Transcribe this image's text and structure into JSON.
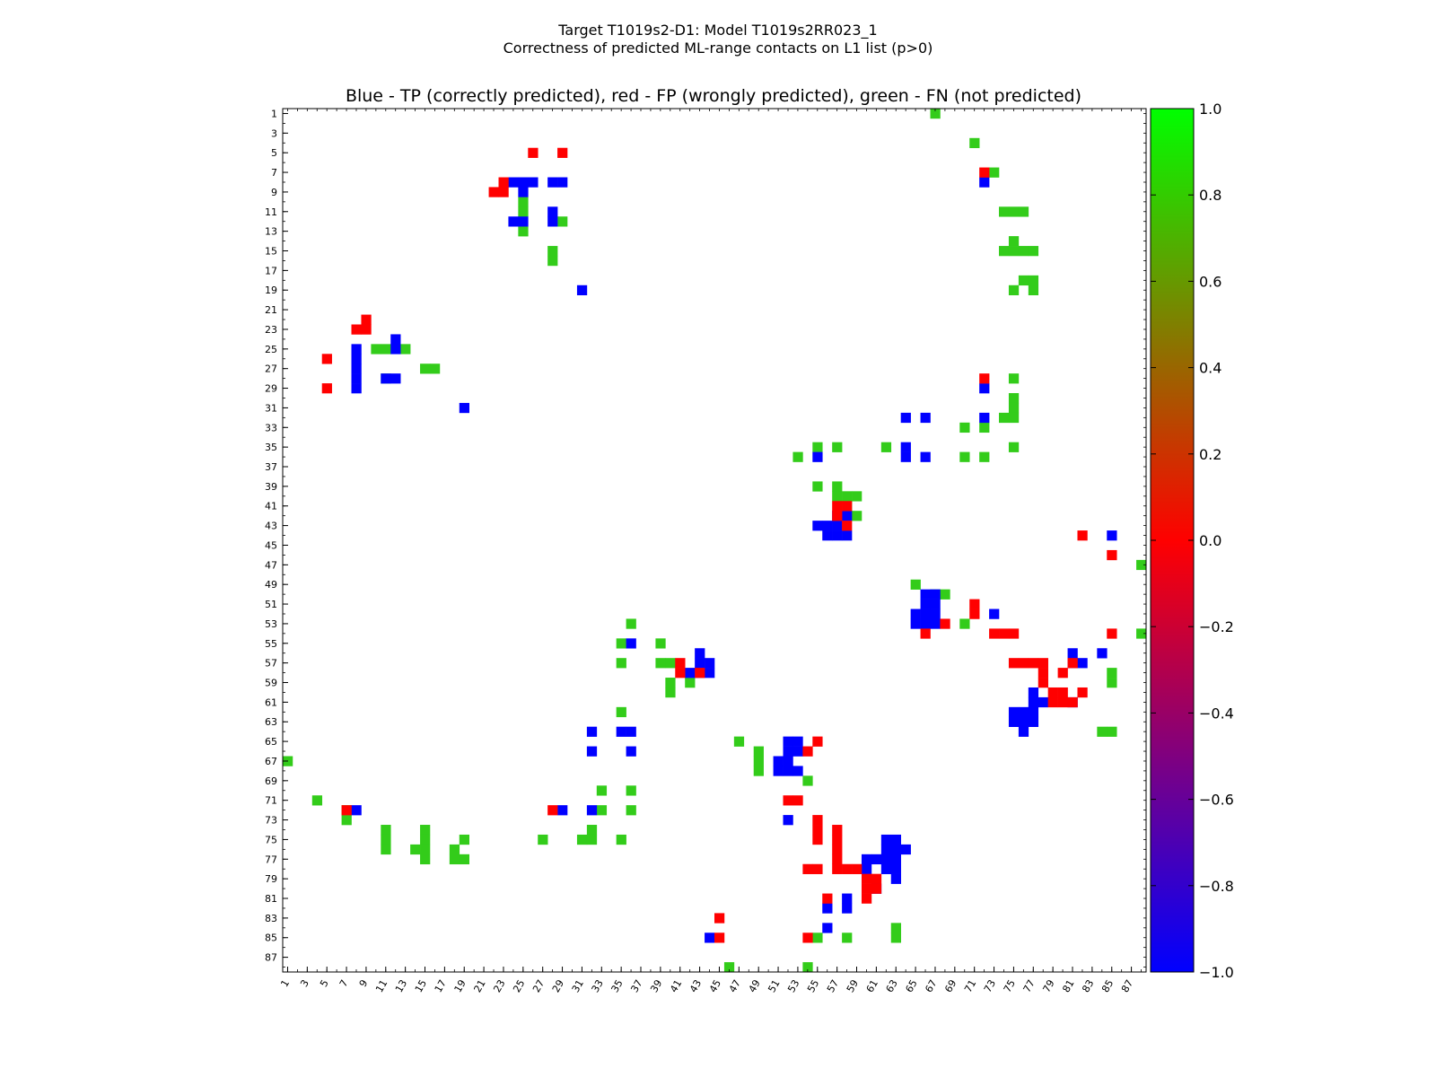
{
  "figure": {
    "suptitle_line1": "Target T1019s2-D1: Model T1019s2RR023_1",
    "suptitle_line2": "Correctness of predicted ML-range contacts on L1 list (p>0)",
    "axes_title": "Blue - TP (correctly predicted), red - FP (wrongly predicted), green - FN (not predicted)"
  },
  "chart_data": {
    "type": "heatmap",
    "n_residues": 88,
    "xlim": [
      1,
      88
    ],
    "ylim": [
      1,
      88
    ],
    "y_inverted": true,
    "x_ticks": [
      1,
      3,
      5,
      7,
      9,
      11,
      13,
      15,
      17,
      19,
      21,
      23,
      25,
      27,
      29,
      31,
      33,
      35,
      37,
      39,
      41,
      43,
      45,
      47,
      49,
      51,
      53,
      55,
      57,
      59,
      61,
      63,
      65,
      67,
      69,
      71,
      73,
      75,
      77,
      79,
      81,
      83,
      85,
      87
    ],
    "y_ticks": [
      1,
      3,
      5,
      7,
      9,
      11,
      13,
      15,
      17,
      19,
      21,
      23,
      25,
      27,
      29,
      31,
      33,
      35,
      37,
      39,
      41,
      43,
      45,
      47,
      49,
      51,
      53,
      55,
      57,
      59,
      61,
      63,
      65,
      67,
      69,
      71,
      73,
      75,
      77,
      79,
      81,
      83,
      85,
      87
    ],
    "colorbar": {
      "min": -1.0,
      "max": 1.0,
      "ticks": [
        "1.0",
        "0.8",
        "0.6",
        "0.4",
        "0.2",
        "0.0",
        "−0.2",
        "−0.4",
        "−0.6",
        "−0.8",
        "−1.0"
      ],
      "stops": [
        {
          "value": -1.0,
          "color": "#0000ff"
        },
        {
          "value": 0.0,
          "color": "#ff0000"
        },
        {
          "value": 1.0,
          "color": "#00ff00"
        }
      ]
    },
    "colors": {
      "TP": "#0000ff",
      "FP": "#ff0000",
      "FN": "#33cc1a"
    },
    "TP": [
      [
        25,
        8
      ],
      [
        26,
        8
      ],
      [
        27,
        8
      ],
      [
        8,
        24
      ],
      [
        8,
        25
      ],
      [
        8,
        26
      ],
      [
        8,
        28
      ],
      [
        8,
        29
      ],
      [
        9,
        25
      ],
      [
        25,
        12
      ],
      [
        24,
        12
      ],
      [
        28,
        8
      ],
      [
        29,
        8
      ],
      [
        28,
        11
      ],
      [
        28,
        12
      ],
      [
        12,
        24
      ],
      [
        12,
        25
      ],
      [
        11,
        28
      ],
      [
        12,
        28
      ],
      [
        19,
        31
      ],
      [
        31,
        19
      ],
      [
        8,
        72
      ],
      [
        29,
        72
      ],
      [
        32,
        72
      ],
      [
        32,
        64
      ],
      [
        32,
        66
      ],
      [
        35,
        64
      ],
      [
        36,
        64
      ],
      [
        36,
        55
      ],
      [
        36,
        66
      ],
      [
        42,
        57
      ],
      [
        42,
        58
      ],
      [
        43,
        55
      ],
      [
        43,
        56
      ],
      [
        43,
        57
      ],
      [
        44,
        56
      ],
      [
        44,
        57
      ],
      [
        44,
        58
      ],
      [
        44,
        85
      ],
      [
        50,
        66
      ],
      [
        50,
        67
      ],
      [
        51,
        66
      ],
      [
        51,
        67
      ],
      [
        52,
        65
      ],
      [
        52,
        66
      ],
      [
        52,
        67
      ],
      [
        53,
        65
      ],
      [
        53,
        66
      ],
      [
        53,
        67
      ],
      [
        52,
        73
      ],
      [
        56,
        43
      ],
      [
        57,
        43
      ],
      [
        57,
        44
      ],
      [
        58,
        42
      ],
      [
        58,
        43
      ],
      [
        58,
        44
      ],
      [
        55,
        36
      ],
      [
        56,
        81
      ],
      [
        57,
        81
      ],
      [
        57,
        82
      ],
      [
        56,
        84
      ],
      [
        60,
        77
      ],
      [
        61,
        77
      ],
      [
        61,
        78
      ],
      [
        62,
        75
      ],
      [
        62,
        76
      ],
      [
        62,
        77
      ],
      [
        63,
        75
      ],
      [
        63,
        76
      ],
      [
        63,
        77
      ],
      [
        64,
        76
      ],
      [
        61,
        81
      ],
      [
        64,
        32
      ],
      [
        64,
        35
      ],
      [
        64,
        36
      ],
      [
        66,
        32
      ],
      [
        66,
        36
      ],
      [
        72,
        32
      ],
      [
        72,
        8
      ],
      [
        72,
        29
      ],
      [
        65,
        52
      ],
      [
        65,
        53
      ],
      [
        66,
        52
      ],
      [
        66,
        53
      ],
      [
        67,
        51
      ],
      [
        67,
        52
      ],
      [
        68,
        51
      ],
      [
        68,
        52
      ],
      [
        68,
        53
      ],
      [
        73,
        52
      ],
      [
        75,
        62
      ],
      [
        75,
        63
      ],
      [
        76,
        62
      ],
      [
        76,
        63
      ],
      [
        76,
        64
      ],
      [
        77,
        60
      ],
      [
        77,
        61
      ],
      [
        77,
        62
      ],
      [
        77,
        63
      ],
      [
        78,
        60
      ],
      [
        78,
        62
      ],
      [
        78,
        63
      ],
      [
        79,
        63
      ],
      [
        80,
        61
      ],
      [
        81,
        58
      ],
      [
        82,
        56
      ],
      [
        82,
        58
      ],
      [
        84,
        56
      ],
      [
        85,
        44
      ]
    ],
    "FP": [
      [
        5,
        26
      ],
      [
        5,
        29
      ],
      [
        8,
        23
      ],
      [
        9,
        22
      ],
      [
        9,
        23
      ],
      [
        7,
        72
      ],
      [
        22,
        9
      ],
      [
        23,
        8
      ],
      [
        23,
        9
      ],
      [
        26,
        5
      ],
      [
        29,
        5
      ],
      [
        28,
        72
      ],
      [
        41,
        57
      ],
      [
        41,
        58
      ],
      [
        42,
        57
      ],
      [
        43,
        58
      ],
      [
        44,
        82
      ],
      [
        46,
        85
      ],
      [
        51,
        71
      ],
      [
        52,
        71
      ],
      [
        53,
        68
      ],
      [
        54,
        66
      ],
      [
        54,
        73
      ],
      [
        54,
        74
      ],
      [
        54,
        75
      ],
      [
        54,
        85
      ],
      [
        57,
        75
      ],
      [
        57,
        76
      ],
      [
        57,
        77
      ],
      [
        57,
        78
      ],
      [
        58,
        78
      ],
      [
        59,
        78
      ],
      [
        57,
        81
      ],
      [
        58,
        80
      ],
      [
        57,
        41
      ],
      [
        58,
        41
      ],
      [
        58,
        43
      ],
      [
        60,
        79
      ],
      [
        60,
        80
      ],
      [
        60,
        82
      ],
      [
        61,
        79
      ],
      [
        61,
        80
      ],
      [
        61,
        81
      ],
      [
        65,
        55
      ],
      [
        66,
        54
      ],
      [
        71,
        52
      ],
      [
        71,
        53
      ],
      [
        72,
        7
      ],
      [
        72,
        28
      ],
      [
        73,
        55
      ],
      [
        74,
        55
      ],
      [
        75,
        55
      ],
      [
        74,
        57
      ],
      [
        75,
        57
      ],
      [
        76,
        57
      ],
      [
        77,
        57
      ],
      [
        78,
        57
      ],
      [
        78,
        58
      ],
      [
        78,
        59
      ],
      [
        79,
        60
      ],
      [
        79,
        61
      ],
      [
        80,
        60
      ],
      [
        80,
        61
      ],
      [
        81,
        60
      ],
      [
        81,
        56
      ],
      [
        83,
        45
      ],
      [
        85,
        45
      ],
      [
        85,
        54
      ],
      [
        78,
        54
      ],
      [
        78,
        55
      ]
    ],
    "FN": [
      [
        1,
        67
      ],
      [
        4,
        71
      ],
      [
        7,
        73
      ],
      [
        10,
        25
      ],
      [
        11,
        25
      ],
      [
        11,
        74
      ],
      [
        11,
        75
      ],
      [
        11,
        76
      ],
      [
        12,
        29
      ],
      [
        13,
        25
      ],
      [
        14,
        75
      ],
      [
        15,
        74
      ],
      [
        15,
        75
      ],
      [
        15,
        76
      ],
      [
        15,
        77
      ],
      [
        15,
        28
      ],
      [
        16,
        28
      ],
      [
        18,
        76
      ],
      [
        18,
        77
      ],
      [
        19,
        75
      ],
      [
        19,
        77
      ],
      [
        25,
        10
      ],
      [
        25,
        11
      ],
      [
        25,
        13
      ],
      [
        27,
        15
      ],
      [
        27,
        16
      ],
      [
        28,
        11
      ],
      [
        28,
        75
      ],
      [
        30,
        75
      ],
      [
        31,
        75
      ],
      [
        32,
        74
      ],
      [
        32,
        75
      ],
      [
        33,
        70
      ],
      [
        33,
        72
      ],
      [
        35,
        55
      ],
      [
        35,
        57
      ],
      [
        35,
        62
      ],
      [
        35,
        75
      ],
      [
        36,
        53
      ],
      [
        36,
        70
      ],
      [
        36,
        72
      ],
      [
        39,
        55
      ],
      [
        39,
        57
      ],
      [
        40,
        57
      ],
      [
        40,
        58
      ],
      [
        40,
        59
      ],
      [
        41,
        58
      ],
      [
        42,
        59
      ],
      [
        47,
        88
      ],
      [
        49,
        65
      ],
      [
        50,
        67
      ],
      [
        50,
        68
      ],
      [
        53,
        70
      ],
      [
        53,
        36
      ],
      [
        54,
        88
      ],
      [
        55,
        35
      ],
      [
        55,
        39
      ],
      [
        57,
        35
      ],
      [
        57,
        39
      ],
      [
        57,
        40
      ],
      [
        58,
        85
      ],
      [
        59,
        40
      ],
      [
        59,
        42
      ],
      [
        60,
        40
      ],
      [
        59,
        85
      ],
      [
        62,
        35
      ],
      [
        64,
        84
      ],
      [
        64,
        85
      ],
      [
        65,
        47
      ],
      [
        66,
        49
      ],
      [
        67,
        1
      ],
      [
        67,
        49
      ],
      [
        68,
        49
      ],
      [
        69,
        54
      ],
      [
        70,
        33
      ],
      [
        70,
        36
      ],
      [
        71,
        4
      ],
      [
        72,
        7
      ],
      [
        72,
        33
      ],
      [
        72,
        36
      ],
      [
        73,
        7
      ],
      [
        74,
        11
      ],
      [
        74,
        15
      ],
      [
        74,
        32
      ],
      [
        75,
        11
      ],
      [
        75,
        15
      ],
      [
        75,
        19
      ],
      [
        75,
        27
      ],
      [
        75,
        31
      ],
      [
        75,
        32
      ],
      [
        75,
        35
      ],
      [
        76,
        11
      ],
      [
        76,
        14
      ],
      [
        76,
        15
      ],
      [
        76,
        18
      ],
      [
        77,
        15
      ],
      [
        77,
        18
      ],
      [
        77,
        19
      ],
      [
        84,
        63
      ],
      [
        85,
        55
      ],
      [
        85,
        58
      ],
      [
        85,
        63
      ],
      [
        88,
        46
      ],
      [
        88,
        54
      ]
    ]
  }
}
